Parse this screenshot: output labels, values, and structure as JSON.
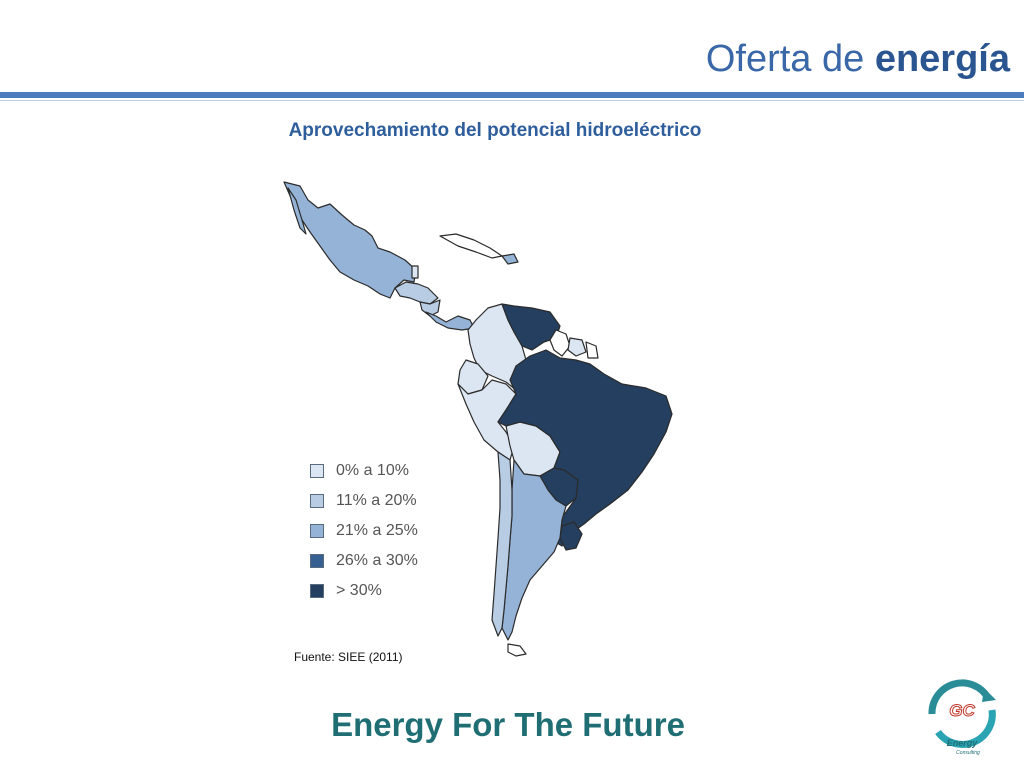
{
  "header": {
    "title_regular": "Oferta de",
    "title_bold": "energía"
  },
  "subtitle": "Aprovechamiento del potencial hidroeléctrico",
  "map": {
    "region": "Latin America",
    "categories": [
      {
        "label": "0% a 10%",
        "color": "#dce6f2"
      },
      {
        "label": "11% a 20%",
        "color": "#b8cce4"
      },
      {
        "label": "21% a 25%",
        "color": "#95b3d7"
      },
      {
        "label": "26% a 30%",
        "color": "#366092"
      },
      {
        "label": "> 30%",
        "color": "#243f60"
      }
    ]
  },
  "source": "Fuente:  SIEE (2011)",
  "footer": {
    "tagline": "Energy For The Future",
    "logo_text": "GC",
    "logo_caption": "Energy",
    "logo_caption_small": "Consulting"
  }
}
